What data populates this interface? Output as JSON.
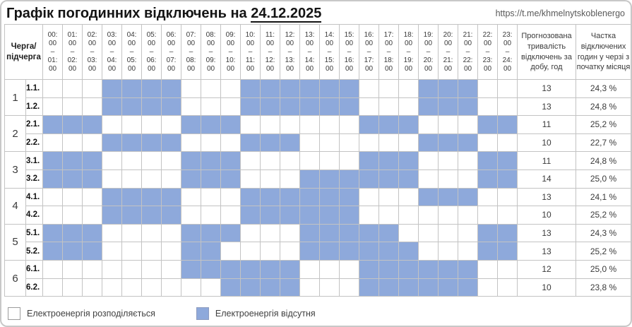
{
  "header": {
    "title_prefix": "Графік погодинних відключень на ",
    "title_date": "24.12.2025",
    "url": "https://t.me/khmelnytskoblenergo"
  },
  "table": {
    "corner_line1": "Черга/",
    "corner_line2": "підчерга",
    "duration_header": "Прогнозована тривалість відключень за добу, год",
    "share_header": "Частка відключених годин у черзі з початку місяця"
  },
  "chart_data": {
    "type": "heatmap",
    "title": "Графік погодинних відключень на 24.12.2025",
    "x_labels": [
      [
        "00:00",
        "01:00"
      ],
      [
        "01:00",
        "02:00"
      ],
      [
        "02:00",
        "03:00"
      ],
      [
        "03:00",
        "04:00"
      ],
      [
        "04:00",
        "05:00"
      ],
      [
        "05:00",
        "06:00"
      ],
      [
        "06:00",
        "07:00"
      ],
      [
        "07:00",
        "08:00"
      ],
      [
        "08:00",
        "09:00"
      ],
      [
        "09:00",
        "10:00"
      ],
      [
        "10:00",
        "11:00"
      ],
      [
        "11:00",
        "12:00"
      ],
      [
        "12:00",
        "13:00"
      ],
      [
        "13:00",
        "14:00"
      ],
      [
        "14:00",
        "15:00"
      ],
      [
        "15:00",
        "16:00"
      ],
      [
        "16:00",
        "17:00"
      ],
      [
        "17:00",
        "18:00"
      ],
      [
        "18:00",
        "19:00"
      ],
      [
        "19:00",
        "20:00"
      ],
      [
        "20:00",
        "21:00"
      ],
      [
        "21:00",
        "22:00"
      ],
      [
        "22:00",
        "23:00"
      ],
      [
        "23:00",
        "24:00"
      ]
    ],
    "cell_values": {
      "0": "Електроенергія розподіляється",
      "1": "Електроенергія відсутня"
    },
    "queues": [
      {
        "number": "1",
        "rows": [
          {
            "label": "1.1.",
            "pattern": "000111100011111100011100",
            "duration": "13",
            "share": "24,3 %"
          },
          {
            "label": "1.2.",
            "pattern": "000111100011111100011100",
            "duration": "13",
            "share": "24,8 %"
          }
        ]
      },
      {
        "number": "2",
        "rows": [
          {
            "label": "2.1.",
            "pattern": "111000011100000011100011",
            "duration": "11",
            "share": "25,2 %"
          },
          {
            "label": "2.2.",
            "pattern": "000111100011100000011100",
            "duration": "10",
            "share": "22,7 %"
          }
        ]
      },
      {
        "number": "3",
        "rows": [
          {
            "label": "3.1.",
            "pattern": "111000011100000011100011",
            "duration": "11",
            "share": "24,8 %"
          },
          {
            "label": "3.2.",
            "pattern": "111000011100011111100011",
            "duration": "14",
            "share": "25,0 %"
          }
        ]
      },
      {
        "number": "4",
        "rows": [
          {
            "label": "4.1.",
            "pattern": "000111100011111100011100",
            "duration": "13",
            "share": "24,1 %"
          },
          {
            "label": "4.2.",
            "pattern": "000111100011111100000000",
            "duration": "10",
            "share": "25,2 %"
          }
        ]
      },
      {
        "number": "5",
        "rows": [
          {
            "label": "5.1.",
            "pattern": "111000011100011111000011",
            "duration": "13",
            "share": "24,3 %"
          },
          {
            "label": "5.2.",
            "pattern": "111000011000011111100011",
            "duration": "13",
            "share": "25,2 %"
          }
        ]
      },
      {
        "number": "6",
        "rows": [
          {
            "label": "6.1.",
            "pattern": "000000011111100011111100",
            "duration": "12",
            "share": "25,0 %"
          },
          {
            "label": "6.2.",
            "pattern": "000000000111100011111100",
            "duration": "10",
            "share": "23,8 %"
          }
        ]
      }
    ]
  },
  "legend": {
    "available_label": "Електроенергія розподіляється",
    "outage_label": "Електроенергія відсутня"
  },
  "colors": {
    "outage_blue": "#8EA9DB",
    "available_white": "#FFFFFF",
    "grid_line": "#C3C3C3"
  }
}
